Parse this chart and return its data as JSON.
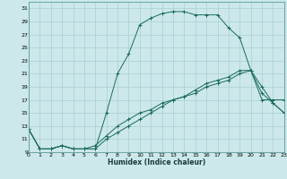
{
  "title": "",
  "xlabel": "Humidex (Indice chaleur)",
  "bg_color": "#cce8ea",
  "grid_color": "#aacfd2",
  "line_color": "#1a6b5a",
  "xmin": 0,
  "xmax": 23,
  "ymin": 9,
  "ymax": 32,
  "yticks": [
    9,
    11,
    13,
    15,
    17,
    19,
    21,
    23,
    25,
    27,
    29,
    31
  ],
  "xticks": [
    0,
    1,
    2,
    3,
    4,
    5,
    6,
    7,
    8,
    9,
    10,
    11,
    12,
    13,
    14,
    15,
    16,
    17,
    18,
    19,
    20,
    21,
    22,
    23
  ],
  "line1_x": [
    0,
    1,
    2,
    3,
    4,
    5,
    6,
    7,
    8,
    9,
    10,
    11,
    12,
    13,
    14,
    15,
    16,
    17,
    18,
    19,
    20,
    21,
    22,
    23
  ],
  "line1_y": [
    12.5,
    9.5,
    9.5,
    10.0,
    9.5,
    9.5,
    9.5,
    15.0,
    21.0,
    24.0,
    28.5,
    29.5,
    30.2,
    30.5,
    30.5,
    30.0,
    30.0,
    30.0,
    28.0,
    26.5,
    21.5,
    17.0,
    17.0,
    17.0
  ],
  "line2_x": [
    0,
    1,
    2,
    3,
    4,
    5,
    6,
    7,
    8,
    9,
    10,
    11,
    12,
    13,
    14,
    15,
    16,
    17,
    18,
    19,
    20,
    21,
    22,
    23
  ],
  "line2_y": [
    12.5,
    9.5,
    9.5,
    10.0,
    9.5,
    9.5,
    9.5,
    11.0,
    12.0,
    13.0,
    14.0,
    15.0,
    16.0,
    17.0,
    17.5,
    18.0,
    19.0,
    19.5,
    20.0,
    21.0,
    21.5,
    19.0,
    16.5,
    15.0
  ],
  "line3_x": [
    0,
    1,
    2,
    3,
    4,
    5,
    6,
    7,
    8,
    9,
    10,
    11,
    12,
    13,
    14,
    15,
    16,
    17,
    18,
    19,
    20,
    21,
    22,
    23
  ],
  "line3_y": [
    12.5,
    9.5,
    9.5,
    10.0,
    9.5,
    9.5,
    10.0,
    11.5,
    13.0,
    14.0,
    15.0,
    15.5,
    16.5,
    17.0,
    17.5,
    18.5,
    19.5,
    20.0,
    20.5,
    21.5,
    21.5,
    18.0,
    16.5,
    15.0
  ]
}
